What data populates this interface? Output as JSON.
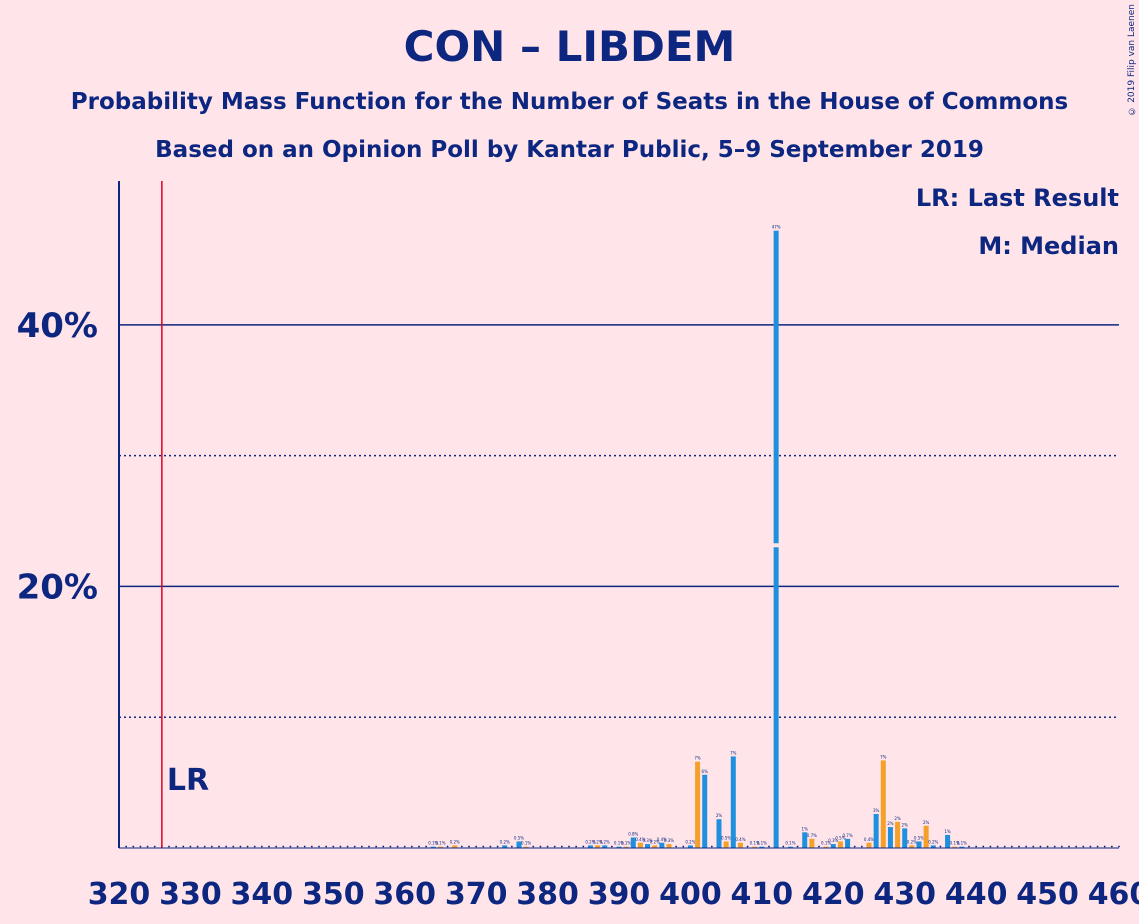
{
  "title": "CON – LIBDEM",
  "subtitle1": "Probability Mass Function for the Number of Seats in the House of Commons",
  "subtitle2": "Based on an Opinion Poll by Kantar Public, 5–9 September 2019",
  "copyright": "© 2019 Filip van Laenen",
  "legend": {
    "lr": "LR: Last Result",
    "median": "M: Median"
  },
  "lr_label": "LR",
  "median_label": "M",
  "colors": {
    "background": "#FFE5E9",
    "text": "#0D2680",
    "median_bar": "#1E90DD",
    "bar_orange": "#F5A02A",
    "last_result": "#E00020"
  },
  "chart_data": {
    "type": "bar",
    "xlim": [
      320,
      460
    ],
    "ylim": [
      0,
      51
    ],
    "x_ticks": [
      320,
      330,
      340,
      350,
      360,
      370,
      380,
      390,
      400,
      410,
      420,
      430,
      440,
      450,
      460
    ],
    "y_ticks_labeled": [
      {
        "value": 20,
        "label": "20%"
      },
      {
        "value": 40,
        "label": "40%"
      }
    ],
    "y_gridlines_dotted": [
      10,
      30
    ],
    "last_result": 326,
    "median": 412,
    "bars": [
      {
        "seats": 364,
        "value": 0.1
      },
      {
        "seats": 365,
        "value": 0.1
      },
      {
        "seats": 367,
        "value": 0.2
      },
      {
        "seats": 374,
        "value": 0.2
      },
      {
        "seats": 376,
        "value": 0.5
      },
      {
        "seats": 377,
        "value": 0.1
      },
      {
        "seats": 386,
        "value": 0.2
      },
      {
        "seats": 387,
        "value": 0.2
      },
      {
        "seats": 388,
        "value": 0.2
      },
      {
        "seats": 390,
        "value": 0.1
      },
      {
        "seats": 391,
        "value": 0.1
      },
      {
        "seats": 392,
        "value": 0.8
      },
      {
        "seats": 393,
        "value": 0.4
      },
      {
        "seats": 394,
        "value": 0.3
      },
      {
        "seats": 395,
        "value": 0.2
      },
      {
        "seats": 396,
        "value": 0.4
      },
      {
        "seats": 397,
        "value": 0.3
      },
      {
        "seats": 400,
        "value": 0.2
      },
      {
        "seats": 401,
        "value": 6.6
      },
      {
        "seats": 402,
        "value": 5.6
      },
      {
        "seats": 404,
        "value": 2.2
      },
      {
        "seats": 405,
        "value": 0.5
      },
      {
        "seats": 406,
        "value": 7.0
      },
      {
        "seats": 407,
        "value": 0.4
      },
      {
        "seats": 409,
        "value": 0.1
      },
      {
        "seats": 410,
        "value": 0.1
      },
      {
        "seats": 412,
        "value": 47.2
      },
      {
        "seats": 414,
        "value": 0.1
      },
      {
        "seats": 416,
        "value": 1.2
      },
      {
        "seats": 417,
        "value": 0.7
      },
      {
        "seats": 419,
        "value": 0.1
      },
      {
        "seats": 420,
        "value": 0.3
      },
      {
        "seats": 421,
        "value": 0.5
      },
      {
        "seats": 422,
        "value": 0.7
      },
      {
        "seats": 425,
        "value": 0.4
      },
      {
        "seats": 426,
        "value": 2.6
      },
      {
        "seats": 427,
        "value": 6.7
      },
      {
        "seats": 428,
        "value": 1.6
      },
      {
        "seats": 429,
        "value": 2.0
      },
      {
        "seats": 430,
        "value": 1.5
      },
      {
        "seats": 431,
        "value": 0.2
      },
      {
        "seats": 432,
        "value": 0.5
      },
      {
        "seats": 433,
        "value": 1.7
      },
      {
        "seats": 434,
        "value": 0.2
      },
      {
        "seats": 436,
        "value": 1.0
      },
      {
        "seats": 437,
        "value": 0.1
      },
      {
        "seats": 438,
        "value": 0.1
      }
    ]
  }
}
